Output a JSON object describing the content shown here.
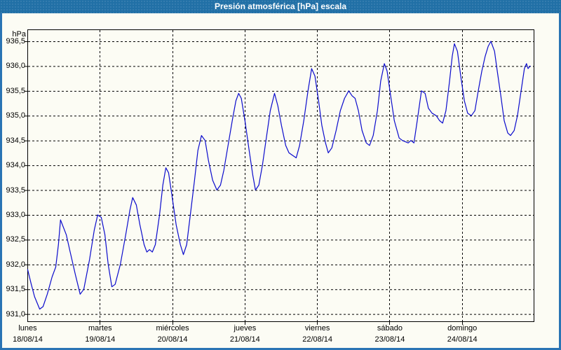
{
  "window": {
    "title": "Presión atmosférica [hPa] escala"
  },
  "colors": {
    "titlebar": "#2170a6",
    "titlebar_dot": "#3a80b2",
    "window_border": "#2a74b4",
    "line": "#0b0bcc",
    "grid": "#000000",
    "text": "#000000",
    "background": "#fcfcf4"
  },
  "chart_data": {
    "type": "line",
    "title": "Presión atmosférica [hPa] escala",
    "y_unit_label": "hPa",
    "ylabel": "hPa",
    "y_range": [
      931.0,
      936.5
    ],
    "y_tick_step": 0.5,
    "y_tick_labels": [
      "936,5",
      "936,0",
      "935,5",
      "935,0",
      "934,5",
      "934,0",
      "933,5",
      "933,0",
      "932,5",
      "932,0",
      "931,5",
      "931,0"
    ],
    "x_days": [
      {
        "name": "lunes",
        "date": "18/08/14"
      },
      {
        "name": "martes",
        "date": "19/08/14"
      },
      {
        "name": "miércoles",
        "date": "20/08/14"
      },
      {
        "name": "jueves",
        "date": "21/08/14"
      },
      {
        "name": "viernes",
        "date": "22/08/14"
      },
      {
        "name": "sábado",
        "date": "23/08/14"
      },
      {
        "name": "domingo",
        "date": "24/08/14"
      }
    ],
    "x_unit": "hours since 2014-08-18 00:00",
    "x_range_hours": [
      0,
      168
    ],
    "grid": "dashed",
    "legend": "none",
    "line_color": "#0b0bcc",
    "series": [
      {
        "name": "Presión atmosférica [hPa]",
        "points": [
          [
            0.1,
            931.9
          ],
          [
            1.3,
            931.6
          ],
          [
            2.4,
            931.35
          ],
          [
            4.1,
            931.1
          ],
          [
            5.2,
            931.15
          ],
          [
            6.6,
            931.4
          ],
          [
            8.2,
            931.75
          ],
          [
            9.4,
            931.95
          ],
          [
            10.3,
            932.4
          ],
          [
            11.0,
            932.9
          ],
          [
            12.9,
            932.6
          ],
          [
            14.0,
            932.3
          ],
          [
            15.9,
            931.8
          ],
          [
            17.5,
            931.4
          ],
          [
            18.7,
            931.5
          ],
          [
            20.6,
            932.1
          ],
          [
            22.2,
            932.7
          ],
          [
            23.3,
            933.0
          ],
          [
            24.5,
            932.95
          ],
          [
            25.7,
            932.6
          ],
          [
            26.8,
            932.0
          ],
          [
            28.0,
            931.55
          ],
          [
            29.1,
            931.6
          ],
          [
            30.8,
            932.0
          ],
          [
            32.6,
            932.6
          ],
          [
            34.0,
            933.1
          ],
          [
            34.9,
            933.35
          ],
          [
            36.1,
            933.2
          ],
          [
            37.3,
            932.8
          ],
          [
            38.7,
            932.4
          ],
          [
            39.6,
            932.25
          ],
          [
            40.5,
            932.3
          ],
          [
            41.4,
            932.25
          ],
          [
            42.4,
            932.4
          ],
          [
            43.8,
            933.0
          ],
          [
            44.9,
            933.6
          ],
          [
            45.9,
            933.95
          ],
          [
            46.8,
            933.85
          ],
          [
            47.9,
            933.4
          ],
          [
            49.3,
            932.8
          ],
          [
            50.7,
            932.4
          ],
          [
            51.7,
            932.2
          ],
          [
            52.8,
            932.4
          ],
          [
            54.0,
            933.0
          ],
          [
            55.4,
            933.7
          ],
          [
            56.5,
            934.3
          ],
          [
            57.7,
            934.6
          ],
          [
            58.9,
            934.5
          ],
          [
            60.0,
            934.1
          ],
          [
            61.4,
            933.7
          ],
          [
            62.8,
            933.5
          ],
          [
            64.0,
            933.6
          ],
          [
            65.1,
            933.9
          ],
          [
            66.5,
            934.4
          ],
          [
            67.9,
            934.9
          ],
          [
            69.1,
            935.3
          ],
          [
            70.0,
            935.45
          ],
          [
            70.9,
            935.35
          ],
          [
            72.1,
            934.9
          ],
          [
            73.5,
            934.3
          ],
          [
            74.7,
            933.8
          ],
          [
            75.6,
            933.5
          ],
          [
            76.7,
            933.6
          ],
          [
            77.9,
            934.0
          ],
          [
            79.3,
            934.6
          ],
          [
            80.5,
            935.1
          ],
          [
            81.9,
            935.45
          ],
          [
            83.0,
            935.2
          ],
          [
            84.2,
            934.8
          ],
          [
            85.6,
            934.4
          ],
          [
            86.7,
            934.25
          ],
          [
            87.9,
            934.2
          ],
          [
            89.1,
            934.15
          ],
          [
            90.2,
            934.4
          ],
          [
            91.6,
            934.9
          ],
          [
            93.0,
            935.5
          ],
          [
            94.2,
            935.95
          ],
          [
            95.3,
            935.8
          ],
          [
            96.5,
            935.3
          ],
          [
            97.6,
            934.8
          ],
          [
            98.8,
            934.45
          ],
          [
            99.7,
            934.25
          ],
          [
            100.9,
            934.35
          ],
          [
            102.3,
            934.7
          ],
          [
            103.7,
            935.1
          ],
          [
            105.1,
            935.35
          ],
          [
            106.5,
            935.5
          ],
          [
            107.6,
            935.4
          ],
          [
            108.6,
            935.35
          ],
          [
            109.7,
            935.1
          ],
          [
            110.9,
            934.7
          ],
          [
            112.3,
            934.45
          ],
          [
            113.4,
            934.4
          ],
          [
            114.6,
            934.6
          ],
          [
            116.0,
            935.1
          ],
          [
            117.1,
            935.7
          ],
          [
            118.3,
            936.05
          ],
          [
            119.2,
            935.9
          ],
          [
            120.4,
            935.4
          ],
          [
            121.6,
            934.9
          ],
          [
            123.2,
            934.55
          ],
          [
            124.3,
            934.5
          ],
          [
            126.2,
            934.45
          ],
          [
            127.1,
            934.5
          ],
          [
            128.1,
            934.45
          ],
          [
            129.2,
            934.9
          ],
          [
            130.6,
            935.5
          ],
          [
            131.8,
            935.45
          ],
          [
            132.9,
            935.15
          ],
          [
            134.1,
            935.05
          ],
          [
            135.5,
            935.0
          ],
          [
            136.6,
            934.9
          ],
          [
            137.6,
            934.85
          ],
          [
            138.7,
            935.1
          ],
          [
            139.9,
            935.7
          ],
          [
            140.8,
            936.2
          ],
          [
            141.5,
            936.45
          ],
          [
            142.5,
            936.3
          ],
          [
            143.6,
            935.8
          ],
          [
            144.8,
            935.3
          ],
          [
            145.9,
            935.05
          ],
          [
            147.1,
            935.0
          ],
          [
            148.3,
            935.1
          ],
          [
            149.4,
            935.5
          ],
          [
            150.6,
            935.9
          ],
          [
            151.7,
            936.2
          ],
          [
            152.7,
            936.4
          ],
          [
            153.6,
            936.5
          ],
          [
            154.8,
            936.3
          ],
          [
            155.7,
            935.9
          ],
          [
            156.9,
            935.4
          ],
          [
            158.0,
            934.9
          ],
          [
            159.2,
            934.65
          ],
          [
            160.1,
            934.6
          ],
          [
            161.3,
            934.7
          ],
          [
            162.4,
            935.0
          ],
          [
            163.6,
            935.5
          ],
          [
            164.7,
            935.95
          ],
          [
            165.4,
            936.05
          ],
          [
            165.9,
            935.95
          ],
          [
            166.6,
            936.0
          ]
        ]
      }
    ]
  }
}
